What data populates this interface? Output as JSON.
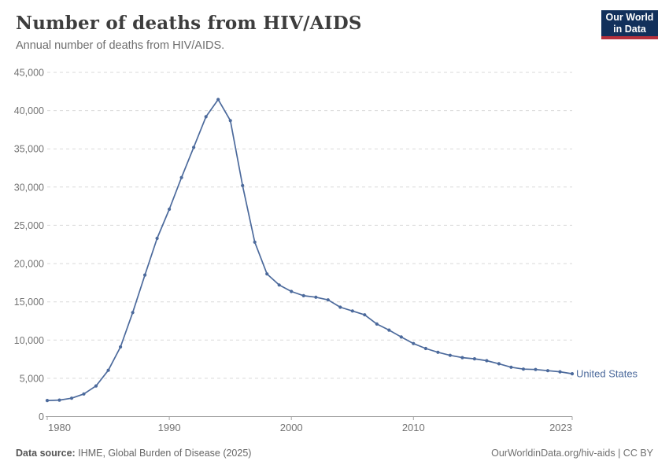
{
  "header": {
    "title": "Number of deaths from HIV/AIDS",
    "subtitle": "Annual number of deaths from HIV/AIDS.",
    "logo": {
      "line1": "Our World",
      "line2": "in Data",
      "bg_color": "#12305b",
      "accent_color": "#b5303c"
    }
  },
  "chart_data": {
    "type": "line",
    "title": "Number of deaths from HIV/AIDS",
    "subtitle": "Annual number of deaths from HIV/AIDS.",
    "xlabel": "",
    "ylabel": "",
    "xlim": [
      1980,
      2023
    ],
    "ylim": [
      0,
      45000
    ],
    "x_ticks": [
      1980,
      1990,
      2000,
      2010,
      2023
    ],
    "y_ticks": [
      0,
      5000,
      10000,
      15000,
      20000,
      25000,
      30000,
      35000,
      40000,
      45000
    ],
    "grid": "horizontal-dashed",
    "legend_position": "end-of-line",
    "x": [
      1980,
      1981,
      1982,
      1983,
      1984,
      1985,
      1986,
      1987,
      1988,
      1989,
      1990,
      1991,
      1992,
      1993,
      1994,
      1995,
      1996,
      1997,
      1998,
      1999,
      2000,
      2001,
      2002,
      2003,
      2004,
      2005,
      2006,
      2007,
      2008,
      2009,
      2010,
      2011,
      2012,
      2013,
      2014,
      2015,
      2016,
      2017,
      2018,
      2019,
      2020,
      2021,
      2022,
      2023
    ],
    "series": [
      {
        "name": "United States",
        "color": "#4c6a9c",
        "values": [
          2100,
          2150,
          2400,
          2950,
          4000,
          6050,
          9100,
          13600,
          18500,
          23300,
          27100,
          31250,
          35200,
          39200,
          41450,
          38700,
          30200,
          22800,
          18650,
          17200,
          16350,
          15800,
          15600,
          15250,
          14300,
          13800,
          13300,
          12100,
          11300,
          10400,
          9550,
          8900,
          8400,
          8000,
          7700,
          7550,
          7300,
          6900,
          6450,
          6200,
          6150,
          6000,
          5850,
          5600
        ]
      }
    ]
  },
  "footer": {
    "source_label": "Data source:",
    "source_value": " IHME, Global Burden of Disease (2025)",
    "url": "OurWorldinData.org/hiv-aids",
    "separator": " | ",
    "license": "CC BY"
  },
  "colors": {
    "line": "#4c6a9c",
    "grid": "#d9d9d9",
    "axis": "#a5a5a5",
    "tick_text": "#737373",
    "title_text": "#3d3d3d",
    "subtitle_text": "#6e6e6e"
  }
}
